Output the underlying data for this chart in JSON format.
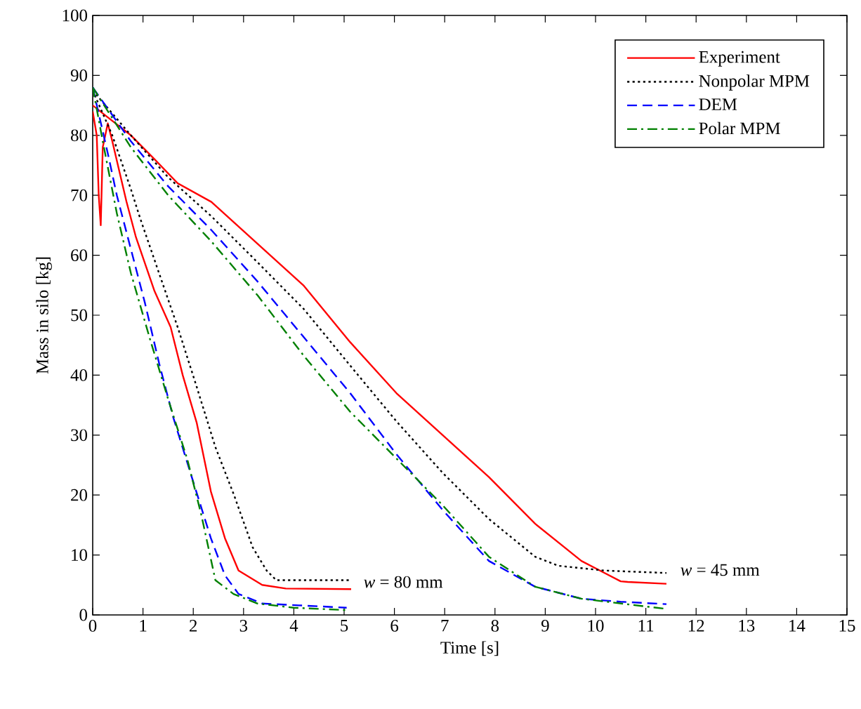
{
  "chart_data": {
    "type": "line",
    "xlabel": "Time [s]",
    "ylabel": "Mass in silo [kg]",
    "xlim": [
      0,
      15
    ],
    "ylim": [
      0,
      100
    ],
    "xticks": [
      0,
      1,
      2,
      3,
      4,
      5,
      6,
      7,
      8,
      9,
      10,
      11,
      12,
      13,
      14,
      15
    ],
    "yticks": [
      0,
      10,
      20,
      30,
      40,
      50,
      60,
      70,
      80,
      90,
      100
    ],
    "grid": false,
    "legend": "top right",
    "marker": "none",
    "annotations": [
      "*w* = 80 mm",
      "*w* = 45 mm"
    ],
    "series": [
      {
        "name": "Experiment",
        "color": "#ff0000",
        "line_style": "solid",
        "x": [
          0,
          0.3,
          0.76,
          1.23,
          1.69,
          2.36,
          3.28,
          4.2,
          5.12,
          6.04,
          6.96,
          7.88,
          8.8,
          9.72,
          10.18,
          10.5,
          10.64,
          11.41
        ],
        "values": [
          85,
          83,
          80,
          76,
          72,
          68.9,
          61.9,
          54.9,
          45.5,
          37,
          30,
          23,
          15.2,
          9,
          7,
          5.6,
          5.5,
          5.2
        ]
      },
      {
        "name": "Nonpolar MPM",
        "color": "#000000",
        "line_style": "dotted",
        "x": [
          0,
          0.76,
          1.5,
          2.36,
          3.28,
          4.2,
          5.12,
          6.04,
          6.96,
          7.88,
          8.8,
          9.26,
          10.18,
          11.41
        ],
        "values": [
          87.5,
          80,
          73,
          66.5,
          58.8,
          51,
          41.6,
          32.3,
          23.7,
          16,
          9.7,
          8.2,
          7.4,
          7
        ]
      },
      {
        "name": "DEM",
        "color": "#0000ff",
        "line_style": "dashed",
        "x": [
          0,
          0.76,
          1.5,
          2.36,
          3.28,
          4.2,
          5.12,
          6.04,
          6.96,
          7.88,
          8.8,
          9.72,
          10.5,
          11.41
        ],
        "values": [
          88,
          79,
          71.5,
          64.2,
          55.6,
          46.3,
          37,
          26.8,
          17.5,
          9,
          4.7,
          2.7,
          2.2,
          1.8
        ]
      },
      {
        "name": "Polar MPM",
        "color": "#008000",
        "line_style": "dashdot",
        "x": [
          0,
          0.76,
          1.5,
          2.36,
          3.28,
          4.2,
          5.12,
          6.04,
          6.96,
          7.88,
          8.8,
          9.72,
          11.41
        ],
        "values": [
          88,
          78,
          70,
          62.3,
          53.3,
          43.2,
          33.9,
          26.1,
          18.3,
          9.7,
          4.7,
          2.7,
          1.0
        ]
      },
      {
        "color": "#ff0000",
        "line_style": "solid",
        "x": [
          0,
          0.08,
          0.12,
          0.16,
          0.2,
          0.3,
          0.39,
          0.67,
          0.86,
          1.23,
          1.55,
          1.79,
          2.07,
          2.35,
          2.63,
          2.9,
          3.37,
          3.84,
          5.14
        ],
        "values": [
          84,
          80,
          70,
          65,
          78,
          82,
          79,
          69,
          63,
          54,
          48,
          40,
          32,
          20.6,
          12.8,
          7.4,
          5,
          4.4,
          4.3
        ]
      },
      {
        "color": "#000000",
        "line_style": "dotted",
        "x": [
          0,
          0.39,
          0.76,
          0.95,
          1.32,
          1.69,
          2.07,
          2.44,
          2.81,
          3.18,
          3.46,
          3.65,
          5.14
        ],
        "values": [
          87.5,
          80,
          71,
          66,
          57,
          48,
          38,
          28,
          20,
          11.3,
          7.4,
          5.8,
          5.8
        ]
      },
      {
        "color": "#0000ff",
        "line_style": "dashed",
        "x": [
          0,
          0.3,
          0.48,
          0.76,
          1.04,
          1.32,
          1.6,
          1.97,
          2.35,
          2.63,
          2.9,
          3.37,
          4.1,
          5.05
        ],
        "values": [
          88,
          77,
          70,
          61,
          52,
          42,
          33,
          23,
          12.8,
          6.6,
          3.5,
          1.9,
          1.6,
          1.2
        ]
      },
      {
        "color": "#008000",
        "line_style": "dashdot",
        "x": [
          0,
          0.2,
          0.48,
          0.76,
          1.14,
          1.5,
          1.88,
          2.16,
          2.44,
          2.8,
          3.28,
          4.0,
          5.05
        ],
        "values": [
          88,
          79,
          67,
          57,
          46,
          36,
          26,
          16.7,
          5.8,
          3.5,
          1.9,
          1.2,
          0.8
        ]
      }
    ]
  }
}
